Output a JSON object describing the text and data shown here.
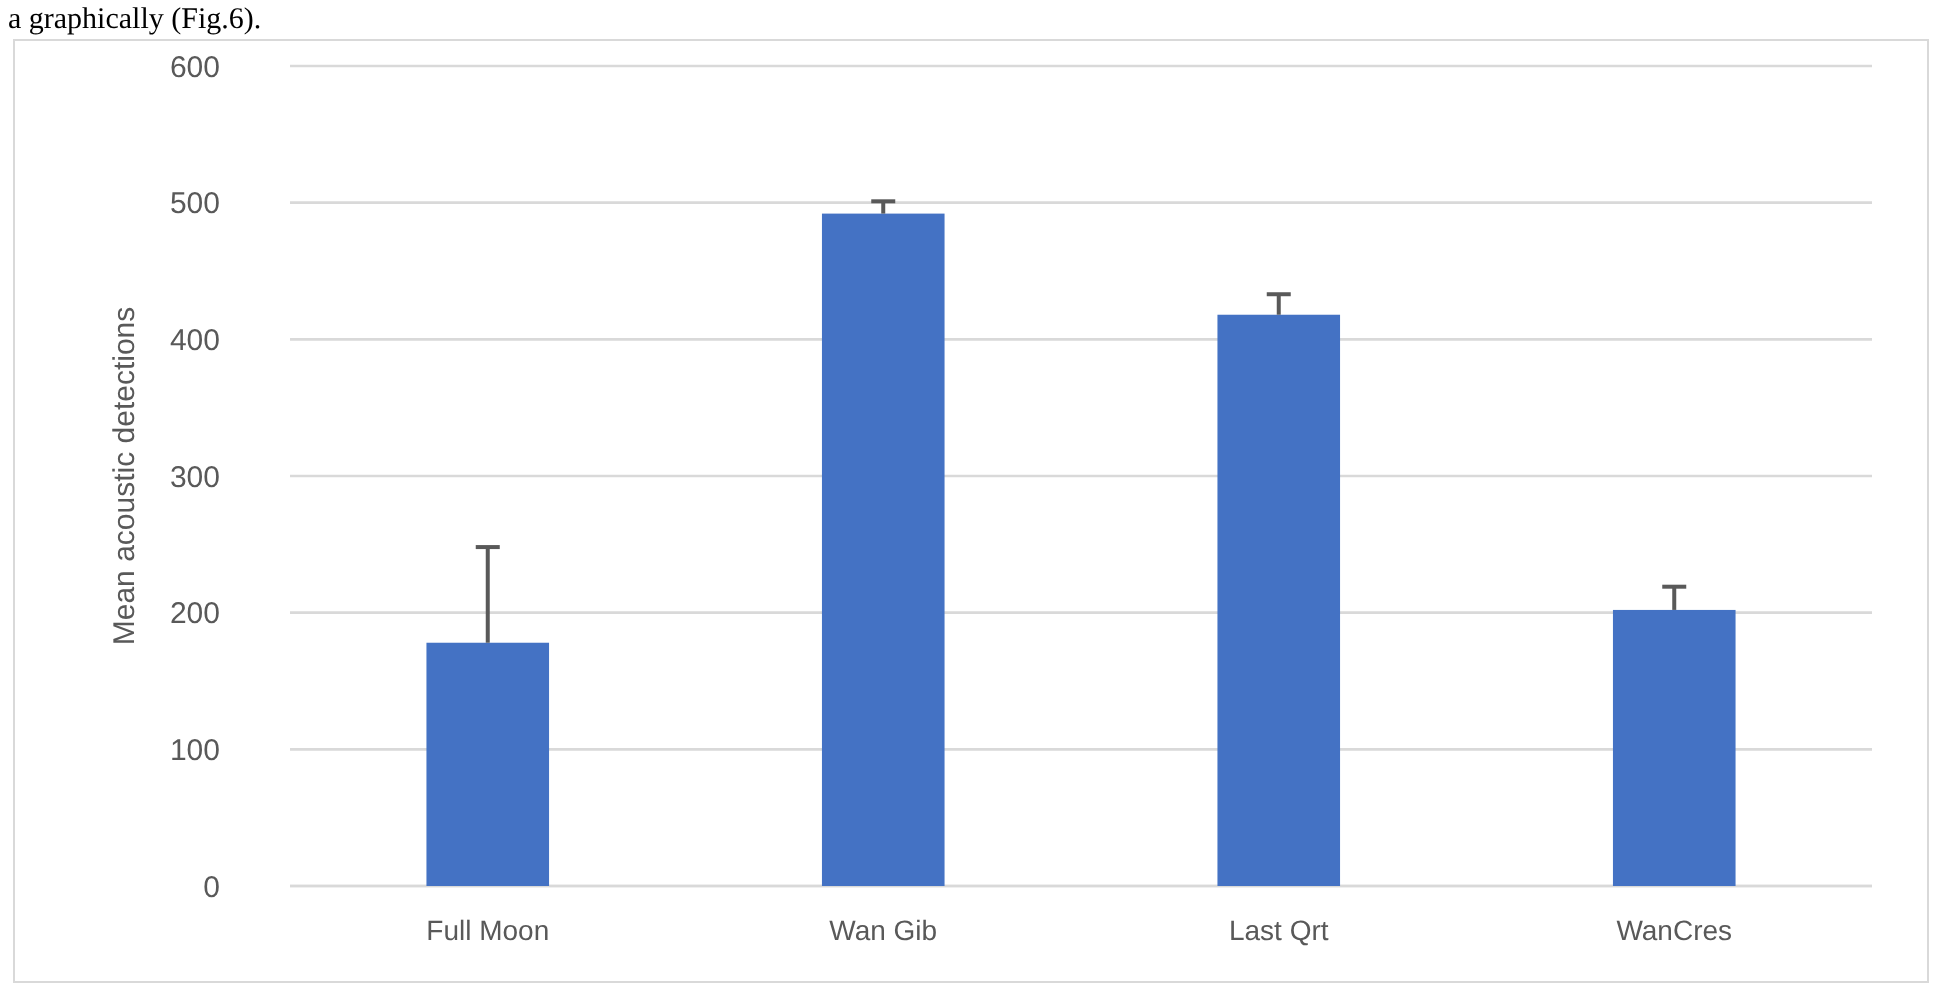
{
  "chart_data": {
    "type": "bar",
    "ylabel": "Mean acoustic detections",
    "categories": [
      "Full Moon",
      "Wan Gib",
      "Last Qrt",
      "WanCres"
    ],
    "values": [
      178,
      492,
      418,
      202
    ],
    "errors": [
      [
        178,
        248
      ],
      [
        492,
        501
      ],
      [
        418,
        433
      ],
      [
        202,
        219
      ]
    ],
    "color": "#4472c4",
    "ylim": [
      0,
      600
    ],
    "yticks": [
      0,
      100,
      200,
      300,
      400,
      500,
      600
    ],
    "grid": "y",
    "annotations": [
      "a graphically (Fig.6)."
    ]
  }
}
